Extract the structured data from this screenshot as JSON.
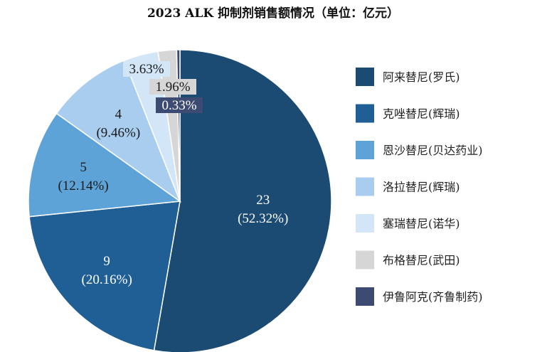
{
  "chart_data": {
    "type": "pie",
    "title": "2023 ALK 抑制剂销售额情况（单位：亿元）",
    "legend_position": "right",
    "slices": [
      {
        "name": "阿来替尼(罗氏)",
        "value": 23,
        "percent_label": "(52.32%)",
        "value_label": "23",
        "color": "#1b4a72"
      },
      {
        "name": "克唑替尼(辉瑞)",
        "value": 9,
        "percent_label": "(20.16%)",
        "value_label": "9",
        "color": "#1f5f96"
      },
      {
        "name": "恩沙替尼(贝达药业)",
        "value": 5,
        "percent_label": "(12.14%)",
        "value_label": "5",
        "color": "#5ea3d8"
      },
      {
        "name": "洛拉替尼(辉瑞)",
        "value": 4,
        "percent_label": "(9.46%)",
        "value_label": "4",
        "color": "#a9cdee"
      },
      {
        "name": "塞瑞替尼(诺华)",
        "value": 1.6,
        "percent_label": "3.63%",
        "value_label": "",
        "color": "#d3e6f7"
      },
      {
        "name": "布格替尼(武田)",
        "value": 0.86,
        "percent_label": "1.96%",
        "value_label": "",
        "color": "#d6d6d6"
      },
      {
        "name": "伊鲁阿克(齐鲁制药)",
        "value": 0.15,
        "percent_label": "0.33%",
        "value_label": "",
        "color": "#3d4a72"
      }
    ]
  }
}
